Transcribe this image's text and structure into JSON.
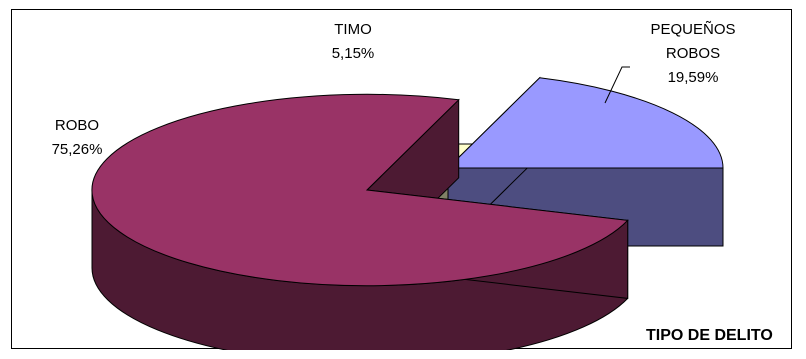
{
  "chart_data": {
    "type": "pie",
    "title": "TIPO DE DELITO",
    "slices": [
      {
        "label": "PEQUEÑOS ROBOS",
        "label_lines": [
          "PEQUEÑOS",
          "ROBOS"
        ],
        "percent_label": "19,59%",
        "value": 19.59,
        "color": "#9999ff",
        "side_color": "#4d4d80"
      },
      {
        "label": "ROBO",
        "label_lines": [
          "ROBO"
        ],
        "percent_label": "75,26%",
        "value": 75.26,
        "color": "#993366",
        "side_color": "#4d1a33"
      },
      {
        "label": "TIMO",
        "label_lines": [
          "TIMO"
        ],
        "percent_label": "5,15%",
        "value": 5.15,
        "color": "#ffffcc",
        "side_color": "#808066"
      }
    ]
  }
}
